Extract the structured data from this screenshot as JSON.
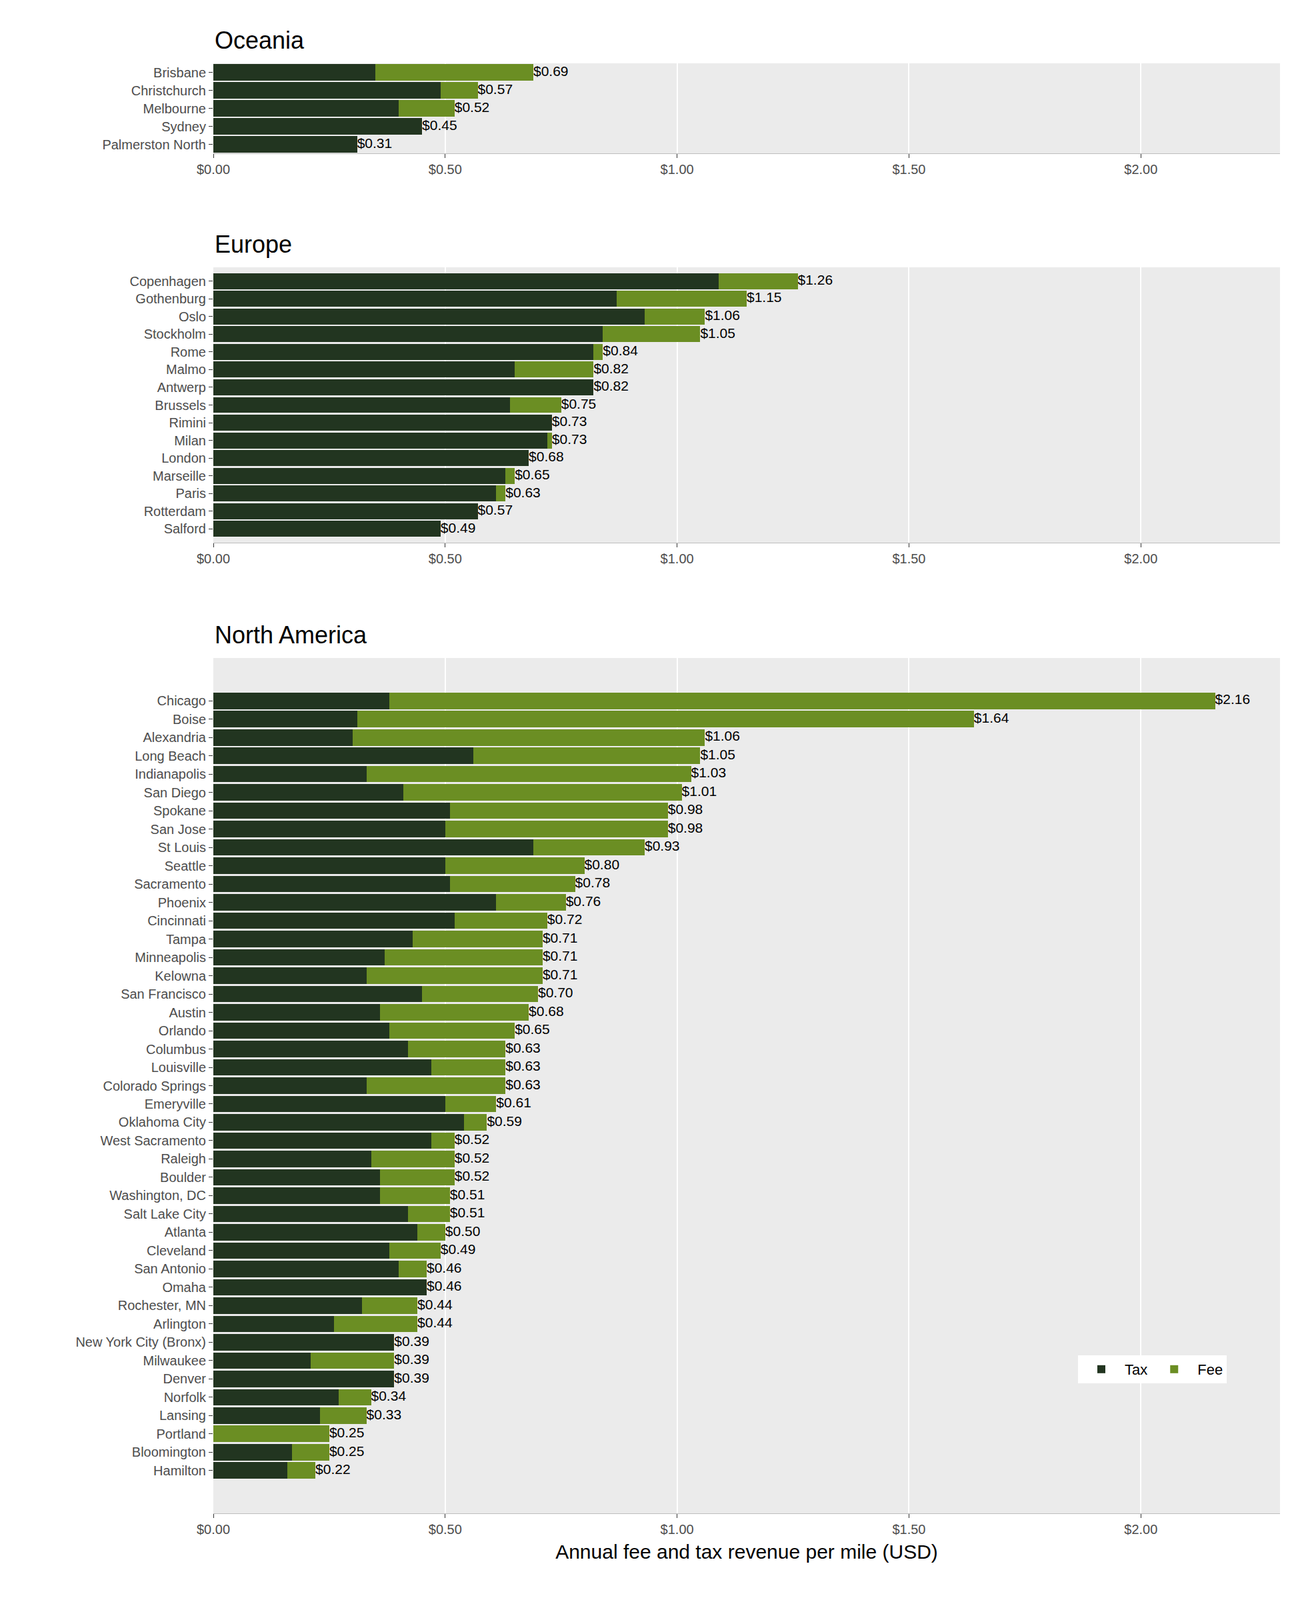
{
  "chart_data": [
    {
      "type": "bar",
      "title": "Oceania",
      "orientation": "horizontal",
      "stacked": true,
      "grid": true,
      "legend": false,
      "categories": [
        "Brisbane",
        "Christchurch",
        "Melbourne",
        "Sydney",
        "Palmerston North"
      ],
      "series": [
        {
          "name": "Tax",
          "color": "#223520",
          "values": [
            0.35,
            0.49,
            0.4,
            0.45,
            0.31
          ]
        },
        {
          "name": "Fee",
          "color": "#6b8e23",
          "values": [
            0.34,
            0.08,
            0.12,
            0,
            0
          ]
        }
      ],
      "totals": [
        0.69,
        0.57,
        0.52,
        0.45,
        0.31
      ],
      "total_labels": [
        "$0.69",
        "$0.57",
        "$0.52",
        "$0.45",
        "$0.31"
      ],
      "xlim": [
        0,
        2.3
      ],
      "xticks": [
        {
          "value": 0,
          "label": "$0.00"
        },
        {
          "value": 0.5,
          "label": "$0.50"
        },
        {
          "value": 1,
          "label": "$1.00"
        },
        {
          "value": 1.5,
          "label": "$1.50"
        },
        {
          "value": 2,
          "label": "$2.00"
        }
      ]
    },
    {
      "type": "bar",
      "title": "Europe",
      "orientation": "horizontal",
      "stacked": true,
      "grid": true,
      "legend": false,
      "categories": [
        "Copenhagen",
        "Gothenburg",
        "Oslo",
        "Stockholm",
        "Rome",
        "Malmo",
        "Antwerp",
        "Brussels",
        "Rimini",
        "Milan",
        "London",
        "Marseille",
        "Paris",
        "Rotterdam",
        "Salford"
      ],
      "series": [
        {
          "name": "Tax",
          "color": "#223520",
          "values": [
            1.09,
            0.87,
            0.93,
            0.84,
            0.82,
            0.65,
            0.82,
            0.64,
            0.73,
            0.72,
            0.68,
            0.63,
            0.61,
            0.57,
            0.49
          ]
        },
        {
          "name": "Fee",
          "color": "#6b8e23",
          "values": [
            0.17,
            0.28,
            0.13,
            0.21,
            0.02,
            0.17,
            0,
            0.11,
            0,
            0.01,
            0,
            0.02,
            0.02,
            0,
            0
          ]
        }
      ],
      "totals": [
        1.26,
        1.15,
        1.06,
        1.05,
        0.84,
        0.82,
        0.82,
        0.75,
        0.73,
        0.73,
        0.68,
        0.65,
        0.63,
        0.57,
        0.49
      ],
      "total_labels": [
        "$1.26",
        "$1.15",
        "$1.06",
        "$1.05",
        "$0.84",
        "$0.82",
        "$0.82",
        "$0.75",
        "$0.73",
        "$0.73",
        "$0.68",
        "$0.65",
        "$0.63",
        "$0.57",
        "$0.49"
      ],
      "xlim": [
        0,
        2.3
      ],
      "xticks": [
        {
          "value": 0,
          "label": "$0.00"
        },
        {
          "value": 0.5,
          "label": "$0.50"
        },
        {
          "value": 1,
          "label": "$1.00"
        },
        {
          "value": 1.5,
          "label": "$1.50"
        },
        {
          "value": 2,
          "label": "$2.00"
        }
      ]
    },
    {
      "type": "bar",
      "title": "North America",
      "orientation": "horizontal",
      "stacked": true,
      "grid": true,
      "legend": "bottom right",
      "x_label": "Annual fee and tax revenue per mile (USD)",
      "categories": [
        "Chicago",
        "Boise",
        "Alexandria",
        "Long Beach",
        "Indianapolis",
        "San Diego",
        "Spokane",
        "San Jose",
        "St Louis",
        "Seattle",
        "Sacramento",
        "Phoenix",
        "Cincinnati",
        "Tampa",
        "Minneapolis",
        "Kelowna",
        "San Francisco",
        "Austin",
        "Orlando",
        "Columbus",
        "Louisville",
        "Colorado Springs",
        "Emeryville",
        "Oklahoma City",
        "West Sacramento",
        "Raleigh",
        "Boulder",
        "Washington, DC",
        "Salt Lake City",
        "Atlanta",
        "Cleveland",
        "San Antonio",
        "Omaha",
        "Rochester, MN",
        "Arlington",
        "New York City (Bronx)",
        "Milwaukee",
        "Denver",
        "Norfolk",
        "Lansing",
        "Portland",
        "Bloomington",
        "Hamilton"
      ],
      "series": [
        {
          "name": "Tax",
          "color": "#223520",
          "values": [
            0.38,
            0.31,
            0.3,
            0.56,
            0.33,
            0.41,
            0.51,
            0.5,
            0.69,
            0.5,
            0.51,
            0.61,
            0.52,
            0.43,
            0.37,
            0.33,
            0.45,
            0.36,
            0.38,
            0.42,
            0.47,
            0.33,
            0.5,
            0.54,
            0.47,
            0.34,
            0.36,
            0.36,
            0.42,
            0.44,
            0.38,
            0.4,
            0.46,
            0.32,
            0.26,
            0.39,
            0.21,
            0.39,
            0.27,
            0.23,
            0,
            0.17,
            0.16
          ]
        },
        {
          "name": "Fee",
          "color": "#6b8e23",
          "values": [
            1.78,
            1.33,
            0.76,
            0.49,
            0.7,
            0.6,
            0.47,
            0.48,
            0.24,
            0.3,
            0.27,
            0.15,
            0.2,
            0.28,
            0.34,
            0.38,
            0.25,
            0.32,
            0.27,
            0.21,
            0.16,
            0.3,
            0.11,
            0.05,
            0.05,
            0.18,
            0.16,
            0.15,
            0.09,
            0.06,
            0.11,
            0.06,
            0,
            0.12,
            0.18,
            0,
            0.18,
            0,
            0.07,
            0.1,
            0.25,
            0.08,
            0.06
          ]
        }
      ],
      "totals": [
        2.16,
        1.64,
        1.06,
        1.05,
        1.03,
        1.01,
        0.98,
        0.98,
        0.93,
        0.8,
        0.78,
        0.76,
        0.72,
        0.71,
        0.71,
        0.71,
        0.7,
        0.68,
        0.65,
        0.63,
        0.63,
        0.63,
        0.61,
        0.59,
        0.52,
        0.52,
        0.52,
        0.51,
        0.51,
        0.5,
        0.49,
        0.46,
        0.46,
        0.44,
        0.44,
        0.39,
        0.39,
        0.39,
        0.34,
        0.33,
        0.25,
        0.25,
        0.22
      ],
      "total_labels": [
        "$2.16",
        "$1.64",
        "$1.06",
        "$1.05",
        "$1.03",
        "$1.01",
        "$0.98",
        "$0.98",
        "$0.93",
        "$0.80",
        "$0.78",
        "$0.76",
        "$0.72",
        "$0.71",
        "$0.71",
        "$0.71",
        "$0.70",
        "$0.68",
        "$0.65",
        "$0.63",
        "$0.63",
        "$0.63",
        "$0.61",
        "$0.59",
        "$0.52",
        "$0.52",
        "$0.52",
        "$0.51",
        "$0.51",
        "$0.50",
        "$0.49",
        "$0.46",
        "$0.46",
        "$0.44",
        "$0.44",
        "$0.39",
        "$0.39",
        "$0.39",
        "$0.34",
        "$0.33",
        "$0.25",
        "$0.25",
        "$0.22"
      ],
      "xlim": [
        0,
        2.3
      ],
      "xticks": [
        {
          "value": 0,
          "label": "$0.00"
        },
        {
          "value": 0.5,
          "label": "$0.50"
        },
        {
          "value": 1,
          "label": "$1.00"
        },
        {
          "value": 1.5,
          "label": "$1.50"
        },
        {
          "value": 2,
          "label": "$2.00"
        }
      ]
    }
  ]
}
